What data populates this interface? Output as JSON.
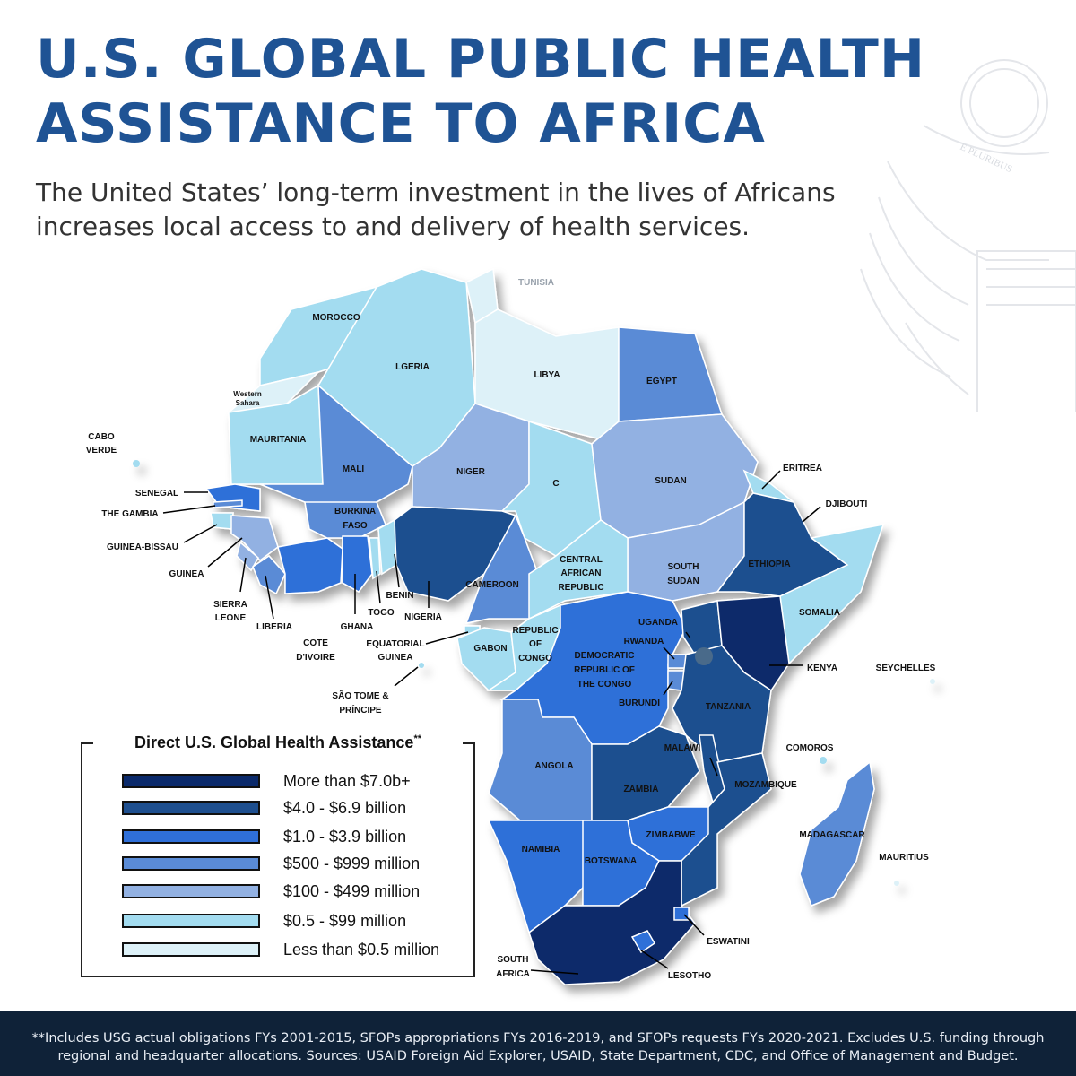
{
  "header": {
    "title_line1": "U.S. GLOBAL PUBLIC HEALTH",
    "title_line2": "ASSISTANCE TO AFRICA",
    "subtitle_line1": "The United States’ long-term investment in the lives of Africans",
    "subtitle_line2": "increases local access to and delivery of health services."
  },
  "seal": {
    "motto": "E PLURIBUS"
  },
  "colors": {
    "title": "#1f5394",
    "tier1": "#0b2a6b",
    "tier2": "#1e4f8f",
    "tier3": "#2f6fd8",
    "tier4": "#5a8bd6",
    "tier5": "#92b1e2",
    "tier6": "#a3dcf0",
    "tier7": "#ddf1f8",
    "footer_bg": "#0f2238"
  },
  "legend": {
    "title": "Direct U.S. Global Health Assistance",
    "title_mark": "**",
    "items": [
      {
        "label": "More than $7.0b+",
        "color": "#0b2a6b"
      },
      {
        "label": "$4.0 - $6.9 billion",
        "color": "#1e4f8f"
      },
      {
        "label": "$1.0 - $3.9 billion",
        "color": "#2f6fd8"
      },
      {
        "label": "$500 - $999 million",
        "color": "#5a8bd6"
      },
      {
        "label": "$100 - $499 million",
        "color": "#92b1e2"
      },
      {
        "label": "$0.5 - $99 million",
        "color": "#a3dcf0"
      },
      {
        "label": "Less than $0.5 million",
        "color": "#ddf1f8"
      }
    ]
  },
  "countries": {
    "tunisia": "TUNISIA",
    "morocco": "MOROCCO",
    "algeria": "LGERIA",
    "libya": "LIBYA",
    "egypt": "EGYPT",
    "western_sahara_1": "Western",
    "western_sahara_2": "Sahara",
    "mauritania": "MAURITANIA",
    "mali": "MALI",
    "niger": "NIGER",
    "chad": "C",
    "sudan": "SUDAN",
    "eritrea": "ERITREA",
    "djibouti": "DJIBOUTI",
    "ethiopia": "ETHIOPIA",
    "somalia": "SOMALIA",
    "south_sudan_1": "SOUTH",
    "south_sudan_2": "SUDAN",
    "car_1": "CENTRAL",
    "car_2": "AFRICAN",
    "car_3": "REPUBLIC",
    "cabo_verde_1": "CABO",
    "cabo_verde_2": "VERDE",
    "senegal": "SENEGAL",
    "gambia": "THE GAMBIA",
    "guinea_bissau": "GUINEA-BISSAU",
    "guinea": "GUINEA",
    "sierra_leone_1": "SIERRA",
    "sierra_leone_2": "LEONE",
    "liberia": "LIBERIA",
    "cote_divoire_1": "COTE",
    "cote_divoire_2": "D'IVOIRE",
    "burkina_1": "BURKINA",
    "burkina_2": "FASO",
    "ghana": "GHANA",
    "togo": "TOGO",
    "benin": "BENIN",
    "nigeria": "NIGERIA",
    "cameroon": "CAMEROON",
    "eq_guinea_1": "EQUATORIAL",
    "eq_guinea_2": "GUINEA",
    "sao_tome_1": "SÃO TOME &",
    "sao_tome_2": "PRÍNCIPE",
    "gabon": "GABON",
    "congo_1": "REPUBLIC",
    "congo_2": "OF",
    "congo_3": "CONGO",
    "drc_1": "DEMOCRATIC",
    "drc_2": "REPUBLIC OF",
    "drc_3": "THE CONGO",
    "uganda": "UGANDA",
    "rwanda": "RWANDA",
    "burundi": "BURUNDI",
    "kenya": "KENYA",
    "tanzania": "TANZANIA",
    "seychelles": "SEYCHELLES",
    "comoros": "COMOROS",
    "angola": "ANGOLA",
    "zambia": "ZAMBIA",
    "malawi": "MALAWI",
    "mozambique": "MOZAMBIQUE",
    "madagascar": "MADAGASCAR",
    "mauritius": "MAURITIUS",
    "namibia": "NAMIBIA",
    "botswana": "BOTSWANA",
    "zimbabwe": "ZIMBABWE",
    "eswatini": "ESWATINI",
    "lesotho": "LESOTHO",
    "south_africa_1": "SOUTH",
    "south_africa_2": "AFRICA"
  },
  "footer": {
    "line1": "**Includes USG actual obligations FYs 2001-2015, SFOPs appropriations FYs 2016-2019, and SFOPs requests FYs 2020-2021. Excludes U.S. funding through",
    "line2": "regional and headquarter allocations. Sources: USAID Foreign Aid Explorer, USAID, State Department, CDC, and Office of Management and Budget."
  }
}
